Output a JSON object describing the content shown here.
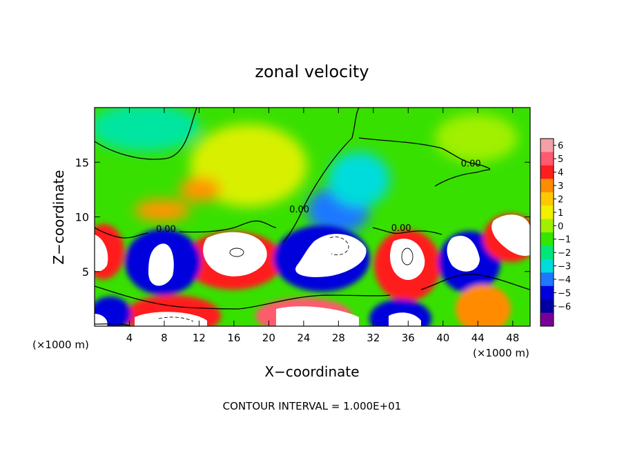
{
  "chart_data": {
    "type": "heatmap",
    "title": "zonal velocity",
    "xlabel": "X−coordinate",
    "ylabel": "Z−coordinate",
    "x_unit_left": "(×1000 m)",
    "x_unit_right": "(×1000 m)",
    "footer": "CONTOUR INTERVAL = 1.000E+01",
    "xlim": [
      0,
      50
    ],
    "ylim": [
      0,
      20
    ],
    "x_ticks": [
      "4",
      "8",
      "12",
      "16",
      "20",
      "24",
      "28",
      "32",
      "36",
      "40",
      "44",
      "48"
    ],
    "y_ticks": [
      "5",
      "10",
      "15"
    ],
    "colorbar": {
      "labels": [
        "6",
        "5",
        "4",
        "3",
        "2",
        "1",
        "0",
        "−1",
        "−2",
        "−3",
        "−4",
        "−5",
        "−6"
      ],
      "colors": [
        "#f5a0a8",
        "#ff5a6e",
        "#ff1e1e",
        "#ff8c00",
        "#ffc800",
        "#f0f000",
        "#a0f000",
        "#32e600",
        "#00e678",
        "#00dcdc",
        "#1e78ff",
        "#0000dc",
        "#0000a0",
        "#780096"
      ]
    },
    "contour_labels": [
      {
        "text": "0.00",
        "x": 8.2,
        "y": 8.6
      },
      {
        "text": "0.00",
        "x": 23.5,
        "y": 10.4
      },
      {
        "text": "0.00",
        "x": 35.2,
        "y": 8.7
      },
      {
        "text": "0.00",
        "x": 43.2,
        "y": 14.6
      }
    ]
  }
}
